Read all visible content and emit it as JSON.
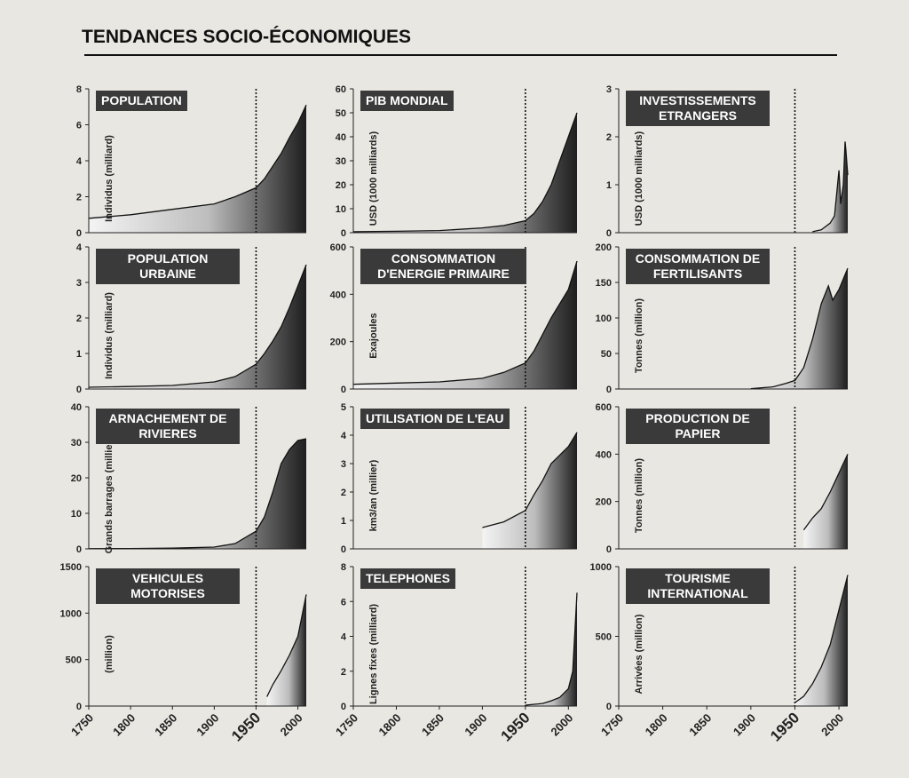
{
  "title": "TENDANCES SOCIO-ÉCONOMIQUES",
  "chart_data": [
    {
      "type": "area",
      "title": "POPULATION",
      "y_label": "Individus (milliard)",
      "xlim": [
        1750,
        2010
      ],
      "vline": 1950,
      "ylim": [
        0,
        8
      ],
      "yticks": [
        0,
        2,
        4,
        6,
        8
      ],
      "x": [
        1750,
        1800,
        1850,
        1900,
        1925,
        1950,
        1960,
        1970,
        1980,
        1990,
        2000,
        2010
      ],
      "values": [
        0.8,
        1.0,
        1.3,
        1.6,
        2.0,
        2.5,
        3.0,
        3.7,
        4.4,
        5.3,
        6.1,
        7.1
      ]
    },
    {
      "type": "area",
      "title": "PIB MONDIAL",
      "y_label": "USD (1000 milliards)",
      "xlim": [
        1750,
        2010
      ],
      "vline": 1950,
      "ylim": [
        0,
        60
      ],
      "yticks": [
        0,
        10,
        20,
        30,
        40,
        50,
        60
      ],
      "x": [
        1750,
        1800,
        1850,
        1900,
        1925,
        1950,
        1960,
        1970,
        1980,
        1990,
        2000,
        2010
      ],
      "values": [
        0.4,
        0.6,
        0.9,
        2,
        3,
        5,
        8,
        13,
        20,
        30,
        40,
        50
      ]
    },
    {
      "type": "area",
      "title": "INVESTISSEMENTS ETRANGERS",
      "y_label": "USD (1000 milliards)",
      "xlim": [
        1750,
        2010
      ],
      "vline": 1950,
      "ylim": [
        0,
        3
      ],
      "yticks": [
        0,
        1,
        2,
        3
      ],
      "x": [
        1970,
        1980,
        1990,
        1995,
        2000,
        2002,
        2005,
        2007,
        2008,
        2010
      ],
      "values": [
        0.02,
        0.06,
        0.2,
        0.35,
        1.3,
        0.6,
        1.0,
        1.9,
        1.7,
        1.2
      ]
    },
    {
      "type": "area",
      "title": "POPULATION URBAINE",
      "y_label": "Individus (milliard)",
      "xlim": [
        1750,
        2010
      ],
      "vline": 1950,
      "ylim": [
        0,
        4
      ],
      "yticks": [
        0,
        1,
        2,
        3,
        4
      ],
      "x": [
        1750,
        1800,
        1850,
        1900,
        1925,
        1950,
        1960,
        1970,
        1980,
        1990,
        2000,
        2010
      ],
      "values": [
        0.05,
        0.07,
        0.1,
        0.2,
        0.35,
        0.7,
        1.0,
        1.35,
        1.75,
        2.3,
        2.9,
        3.5
      ]
    },
    {
      "type": "area",
      "title": "CONSOMMATION D'ENERGIE PRIMAIRE",
      "y_label": "Exajoules",
      "xlim": [
        1750,
        2010
      ],
      "vline": 1950,
      "ylim": [
        0,
        600
      ],
      "yticks": [
        0,
        200,
        400,
        600
      ],
      "x": [
        1750,
        1800,
        1850,
        1900,
        1925,
        1950,
        1960,
        1970,
        1980,
        1990,
        2000,
        2010
      ],
      "values": [
        20,
        25,
        30,
        45,
        70,
        110,
        160,
        230,
        300,
        360,
        420,
        540
      ]
    },
    {
      "type": "area",
      "title": "CONSOMMATION DE FERTILISANTS",
      "y_label": "Tonnes (million)",
      "xlim": [
        1750,
        2010
      ],
      "vline": 1950,
      "ylim": [
        0,
        200
      ],
      "yticks": [
        0,
        50,
        100,
        150,
        200
      ],
      "x": [
        1900,
        1925,
        1940,
        1950,
        1960,
        1970,
        1980,
        1988,
        1993,
        2000,
        2010
      ],
      "values": [
        0.5,
        3,
        8,
        12,
        30,
        70,
        120,
        145,
        125,
        140,
        170
      ]
    },
    {
      "type": "area",
      "title": "ARNACHEMENT DE RIVIERES",
      "y_label": "Grands barrages (millier)",
      "xlim": [
        1750,
        2010
      ],
      "vline": 1950,
      "ylim": [
        0,
        40
      ],
      "yticks": [
        0,
        10,
        20,
        30,
        40
      ],
      "x": [
        1750,
        1800,
        1850,
        1900,
        1925,
        1950,
        1960,
        1970,
        1980,
        1990,
        2000,
        2010
      ],
      "values": [
        0.05,
        0.1,
        0.2,
        0.5,
        1.5,
        5,
        9,
        16,
        24,
        28,
        30.5,
        31
      ]
    },
    {
      "type": "area",
      "title": "UTILISATION DE L'EAU",
      "y_label": "km3/an (millier)",
      "xlim": [
        1750,
        2010
      ],
      "vline": 1950,
      "ylim": [
        0,
        5
      ],
      "yticks": [
        0,
        1,
        2,
        3,
        4,
        5
      ],
      "x": [
        1900,
        1925,
        1950,
        1960,
        1970,
        1980,
        1990,
        2000,
        2010
      ],
      "values": [
        0.75,
        0.95,
        1.35,
        1.9,
        2.4,
        3.0,
        3.3,
        3.6,
        4.1
      ]
    },
    {
      "type": "area",
      "title": "PRODUCTION DE PAPIER",
      "y_label": "Tonnes (million)",
      "xlim": [
        1750,
        2010
      ],
      "vline": 1950,
      "ylim": [
        0,
        600
      ],
      "yticks": [
        0,
        200,
        400,
        600
      ],
      "x": [
        1960,
        1970,
        1980,
        1990,
        2000,
        2010
      ],
      "values": [
        80,
        130,
        170,
        240,
        320,
        400
      ]
    },
    {
      "type": "area",
      "title": "VEHICULES MOTORISES",
      "y_label": "(million)",
      "xlim": [
        1750,
        2010
      ],
      "vline": 1950,
      "ylim": [
        0,
        1500
      ],
      "yticks": [
        0,
        500,
        1000,
        1500
      ],
      "xticks": [
        1750,
        1800,
        1850,
        1900,
        1950,
        2000
      ],
      "x": [
        1963,
        1970,
        1980,
        1990,
        2000,
        2010
      ],
      "values": [
        100,
        230,
        380,
        550,
        750,
        1200
      ]
    },
    {
      "type": "area",
      "title": "TELEPHONES",
      "y_label": "Lignes fixes (milliard)",
      "xlim": [
        1750,
        2010
      ],
      "vline": 1950,
      "ylim": [
        0,
        8
      ],
      "yticks": [
        0,
        2,
        4,
        6,
        8
      ],
      "xticks": [
        1750,
        1800,
        1850,
        1900,
        1950,
        2000
      ],
      "x": [
        1950,
        1970,
        1980,
        1990,
        2000,
        2005,
        2010
      ],
      "values": [
        0.05,
        0.15,
        0.3,
        0.5,
        1.0,
        2.0,
        6.5
      ]
    },
    {
      "type": "area",
      "title": "TOURISME INTERNATIONAL",
      "y_label": "Arrivées (million)",
      "xlim": [
        1750,
        2010
      ],
      "vline": 1950,
      "ylim": [
        0,
        1000
      ],
      "yticks": [
        0,
        500,
        1000
      ],
      "xticks": [
        1750,
        1800,
        1850,
        1900,
        1950,
        2000
      ],
      "x": [
        1950,
        1960,
        1970,
        1980,
        1990,
        2000,
        2010
      ],
      "values": [
        25,
        70,
        160,
        280,
        440,
        690,
        940
      ]
    }
  ]
}
